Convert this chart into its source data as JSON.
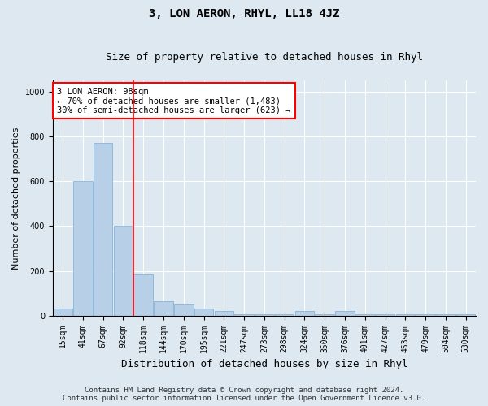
{
  "title": "3, LON AERON, RHYL, LL18 4JZ",
  "subtitle": "Size of property relative to detached houses in Rhyl",
  "xlabel": "Distribution of detached houses by size in Rhyl",
  "ylabel": "Number of detached properties",
  "categories": [
    "15sqm",
    "41sqm",
    "67sqm",
    "92sqm",
    "118sqm",
    "144sqm",
    "170sqm",
    "195sqm",
    "221sqm",
    "247sqm",
    "273sqm",
    "298sqm",
    "324sqm",
    "350sqm",
    "376sqm",
    "401sqm",
    "427sqm",
    "453sqm",
    "479sqm",
    "504sqm",
    "530sqm"
  ],
  "values": [
    30,
    600,
    770,
    400,
    185,
    65,
    50,
    30,
    20,
    5,
    5,
    5,
    20,
    5,
    20,
    5,
    5,
    5,
    5,
    5,
    5
  ],
  "bar_color": "#b8cfe8",
  "bar_edge_color": "#7aadd4",
  "vline_color": "red",
  "vline_pos": 3.5,
  "annotation_text": "3 LON AERON: 98sqm\n← 70% of detached houses are smaller (1,483)\n30% of semi-detached houses are larger (623) →",
  "annotation_box_facecolor": "white",
  "annotation_box_edgecolor": "red",
  "ylim_max": 1050,
  "yticks": [
    0,
    200,
    400,
    600,
    800,
    1000
  ],
  "footer_line1": "Contains HM Land Registry data © Crown copyright and database right 2024.",
  "footer_line2": "Contains public sector information licensed under the Open Government Licence v3.0.",
  "fig_facecolor": "#dde8f0",
  "ax_facecolor": "#dde8f0",
  "grid_color": "white",
  "title_fontsize": 10,
  "subtitle_fontsize": 9,
  "ylabel_fontsize": 8,
  "xlabel_fontsize": 9,
  "tick_fontsize": 7,
  "annot_fontsize": 7.5,
  "footer_fontsize": 6.5
}
